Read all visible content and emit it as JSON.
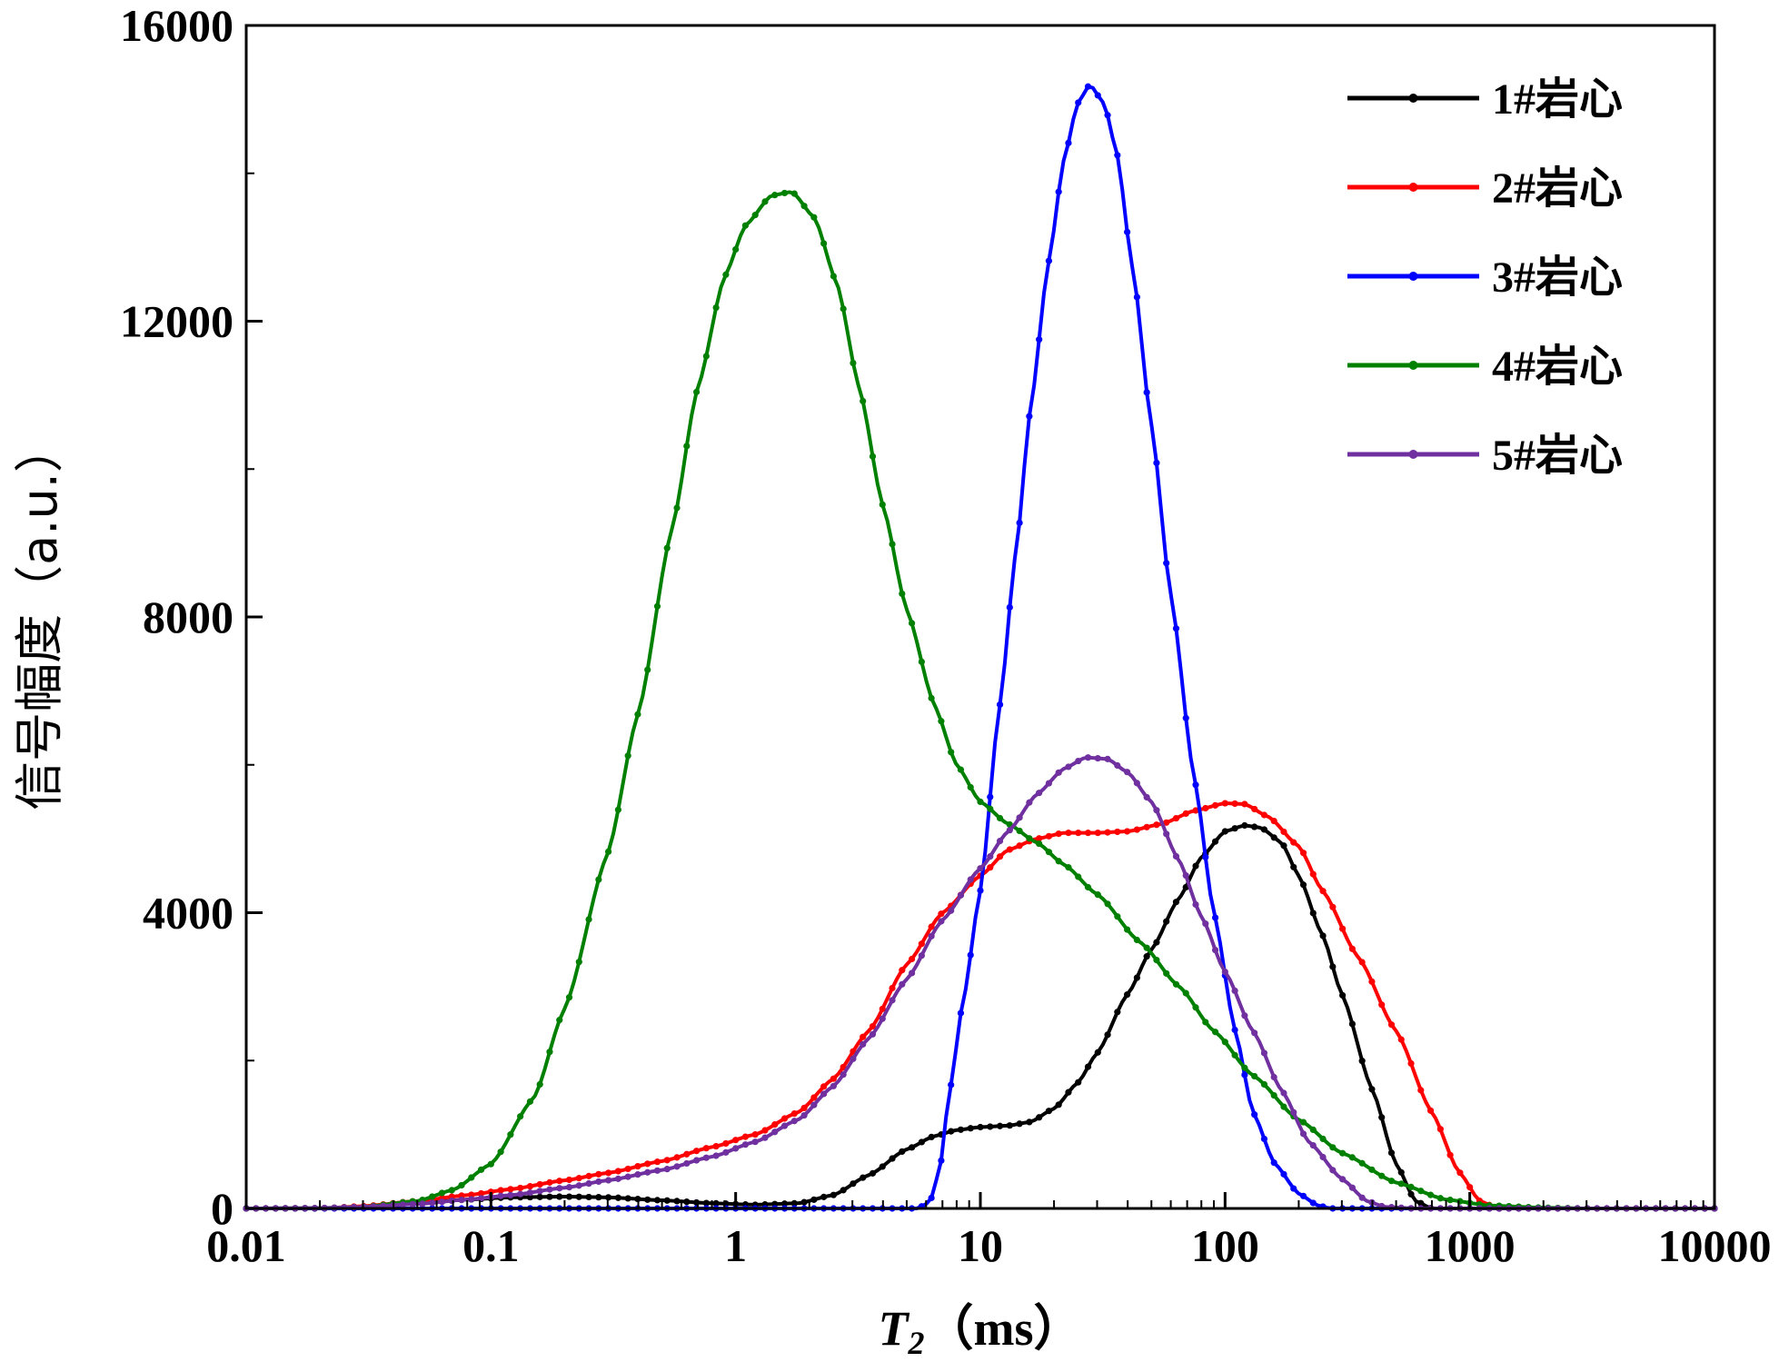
{
  "chart_data": {
    "type": "line",
    "title": "",
    "xlabel": {
      "symbol": "T",
      "subscript": "2",
      "unit": "（ms）"
    },
    "ylabel": "信号幅度（a.u.）",
    "xscale": "log",
    "xlim": [
      0.01,
      10000
    ],
    "ylim": [
      0,
      16000
    ],
    "xticks": [
      0.01,
      0.1,
      1,
      10,
      100,
      1000,
      10000
    ],
    "xtick_labels": [
      "0.01",
      "0.1",
      "1",
      "10",
      "100",
      "1000",
      "10000"
    ],
    "yticks": [
      0,
      4000,
      8000,
      12000,
      16000
    ],
    "ytick_labels": [
      "0",
      "4000",
      "8000",
      "12000",
      "16000"
    ],
    "grid": false,
    "legend_position": "top-right",
    "series": [
      {
        "name": "1#岩心",
        "color": "#000000",
        "points": [
          [
            0.01,
            0
          ],
          [
            0.02,
            0
          ],
          [
            0.03,
            20
          ],
          [
            0.05,
            70
          ],
          [
            0.08,
            120
          ],
          [
            0.12,
            150
          ],
          [
            0.2,
            160
          ],
          [
            0.3,
            150
          ],
          [
            0.5,
            110
          ],
          [
            0.8,
            70
          ],
          [
            1.2,
            50
          ],
          [
            1.8,
            70
          ],
          [
            2.5,
            180
          ],
          [
            3.5,
            450
          ],
          [
            5,
            800
          ],
          [
            6.5,
            980
          ],
          [
            8,
            1060
          ],
          [
            10,
            1100
          ],
          [
            13,
            1120
          ],
          [
            16,
            1170
          ],
          [
            20,
            1350
          ],
          [
            25,
            1700
          ],
          [
            30,
            2100
          ],
          [
            40,
            2900
          ],
          [
            50,
            3500
          ],
          [
            65,
            4200
          ],
          [
            80,
            4750
          ],
          [
            100,
            5100
          ],
          [
            120,
            5180
          ],
          [
            140,
            5150
          ],
          [
            170,
            4950
          ],
          [
            200,
            4500
          ],
          [
            250,
            3700
          ],
          [
            300,
            2900
          ],
          [
            400,
            1600
          ],
          [
            500,
            600
          ],
          [
            600,
            100
          ],
          [
            700,
            0
          ],
          [
            10000,
            0
          ]
        ]
      },
      {
        "name": "2#岩心",
        "color": "#ff0000",
        "points": [
          [
            0.01,
            0
          ],
          [
            0.02,
            0
          ],
          [
            0.03,
            30
          ],
          [
            0.05,
            100
          ],
          [
            0.08,
            180
          ],
          [
            0.12,
            260
          ],
          [
            0.2,
            380
          ],
          [
            0.3,
            480
          ],
          [
            0.5,
            640
          ],
          [
            0.8,
            830
          ],
          [
            1.2,
            1000
          ],
          [
            1.8,
            1300
          ],
          [
            2.5,
            1750
          ],
          [
            3.5,
            2400
          ],
          [
            5,
            3300
          ],
          [
            7,
            4000
          ],
          [
            10,
            4500
          ],
          [
            13,
            4850
          ],
          [
            17,
            5000
          ],
          [
            22,
            5080
          ],
          [
            30,
            5080
          ],
          [
            40,
            5100
          ],
          [
            55,
            5200
          ],
          [
            75,
            5380
          ],
          [
            100,
            5480
          ],
          [
            120,
            5470
          ],
          [
            150,
            5300
          ],
          [
            200,
            4900
          ],
          [
            250,
            4300
          ],
          [
            350,
            3400
          ],
          [
            500,
            2400
          ],
          [
            700,
            1300
          ],
          [
            900,
            500
          ],
          [
            1100,
            100
          ],
          [
            1300,
            0
          ],
          [
            10000,
            0
          ]
        ]
      },
      {
        "name": "3#岩心",
        "color": "#0000ff",
        "points": [
          [
            0.01,
            0
          ],
          [
            5.5,
            0
          ],
          [
            6.2,
            80
          ],
          [
            6.8,
            500
          ],
          [
            7.5,
            1600
          ],
          [
            8.5,
            2800
          ],
          [
            10,
            4300
          ],
          [
            12,
            6800
          ],
          [
            14,
            8900
          ],
          [
            16,
            10800
          ],
          [
            19,
            12800
          ],
          [
            22,
            14200
          ],
          [
            25,
            14950
          ],
          [
            28,
            15200
          ],
          [
            32,
            14950
          ],
          [
            36,
            14300
          ],
          [
            42,
            12700
          ],
          [
            50,
            10600
          ],
          [
            60,
            8300
          ],
          [
            75,
            5800
          ],
          [
            90,
            4000
          ],
          [
            110,
            2400
          ],
          [
            130,
            1300
          ],
          [
            160,
            600
          ],
          [
            200,
            200
          ],
          [
            240,
            40
          ],
          [
            270,
            0
          ],
          [
            10000,
            0
          ]
        ]
      },
      {
        "name": "4#岩心",
        "color": "#008000",
        "points": [
          [
            0.01,
            0
          ],
          [
            0.02,
            5
          ],
          [
            0.03,
            20
          ],
          [
            0.05,
            100
          ],
          [
            0.07,
            250
          ],
          [
            0.1,
            600
          ],
          [
            0.15,
            1500
          ],
          [
            0.2,
            2700
          ],
          [
            0.3,
            4800
          ],
          [
            0.4,
            6700
          ],
          [
            0.55,
            9200
          ],
          [
            0.7,
            11100
          ],
          [
            0.9,
            12600
          ],
          [
            1.1,
            13300
          ],
          [
            1.4,
            13700
          ],
          [
            1.7,
            13750
          ],
          [
            2.1,
            13400
          ],
          [
            2.6,
            12500
          ],
          [
            3.2,
            11100
          ],
          [
            4,
            9500
          ],
          [
            5,
            8100
          ],
          [
            6.5,
            6800
          ],
          [
            8,
            6000
          ],
          [
            10,
            5500
          ],
          [
            13,
            5200
          ],
          [
            17,
            4950
          ],
          [
            22,
            4650
          ],
          [
            30,
            4250
          ],
          [
            45,
            3600
          ],
          [
            65,
            3000
          ],
          [
            90,
            2400
          ],
          [
            130,
            1800
          ],
          [
            200,
            1200
          ],
          [
            300,
            750
          ],
          [
            500,
            350
          ],
          [
            800,
            120
          ],
          [
            1200,
            40
          ],
          [
            2000,
            10
          ],
          [
            3000,
            0
          ],
          [
            10000,
            0
          ]
        ]
      },
      {
        "name": "5#岩心",
        "color": "#7030a0",
        "points": [
          [
            0.01,
            0
          ],
          [
            0.02,
            5
          ],
          [
            0.03,
            20
          ],
          [
            0.05,
            60
          ],
          [
            0.08,
            120
          ],
          [
            0.12,
            180
          ],
          [
            0.2,
            280
          ],
          [
            0.3,
            380
          ],
          [
            0.5,
            520
          ],
          [
            0.8,
            700
          ],
          [
            1.2,
            900
          ],
          [
            1.8,
            1200
          ],
          [
            2.5,
            1650
          ],
          [
            3.5,
            2300
          ],
          [
            5,
            3100
          ],
          [
            7,
            3900
          ],
          [
            10,
            4600
          ],
          [
            13,
            5100
          ],
          [
            17,
            5600
          ],
          [
            22,
            5950
          ],
          [
            27,
            6100
          ],
          [
            33,
            6080
          ],
          [
            40,
            5900
          ],
          [
            50,
            5500
          ],
          [
            65,
            4700
          ],
          [
            80,
            3950
          ],
          [
            100,
            3200
          ],
          [
            130,
            2400
          ],
          [
            170,
            1600
          ],
          [
            220,
            900
          ],
          [
            300,
            400
          ],
          [
            380,
            100
          ],
          [
            450,
            20
          ],
          [
            600,
            0
          ],
          [
            10000,
            0
          ]
        ]
      }
    ]
  }
}
